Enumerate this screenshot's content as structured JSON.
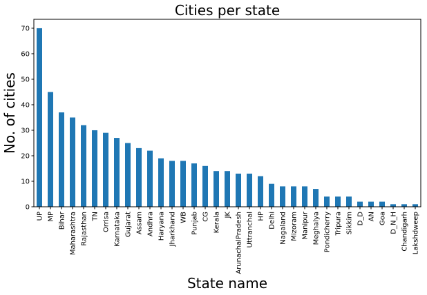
{
  "chart_data": {
    "type": "bar",
    "title": "Cities per state",
    "xlabel": "State name",
    "ylabel": "No. of cities",
    "ylim": [
      0,
      73.5
    ],
    "yticks": [
      0,
      10,
      20,
      30,
      40,
      50,
      60,
      70
    ],
    "grid": false,
    "legend": "none",
    "bar_color": "#1f77b4",
    "categories": [
      "UP",
      "MP",
      "Bihar",
      "Maharashtra",
      "Rajasthan",
      "TN",
      "Orrisa",
      "Karnataka",
      "Gujarat",
      "Assam",
      "Andhra",
      "Haryana",
      "Jharkhand",
      "WB",
      "Punjab",
      "CG",
      "Kerala",
      "JK",
      "ArunachalPradesh",
      "Uttranchal",
      "HP",
      "Delhi",
      "Nagaland",
      "Mizoram",
      "Manipur",
      "Meghalya",
      "Pondicherry",
      "Tripura",
      "Sikkim",
      "D_D",
      "AN",
      "Goa",
      "D_N_H",
      "Chandigarh",
      "Lakshdweep"
    ],
    "values": [
      70,
      45,
      37,
      35,
      32,
      30,
      29,
      27,
      25,
      23,
      22,
      19,
      18,
      18,
      17,
      16,
      14,
      14,
      13,
      13,
      12,
      9,
      8,
      8,
      8,
      7,
      4,
      4,
      4,
      2,
      2,
      2,
      1,
      1,
      1
    ]
  }
}
